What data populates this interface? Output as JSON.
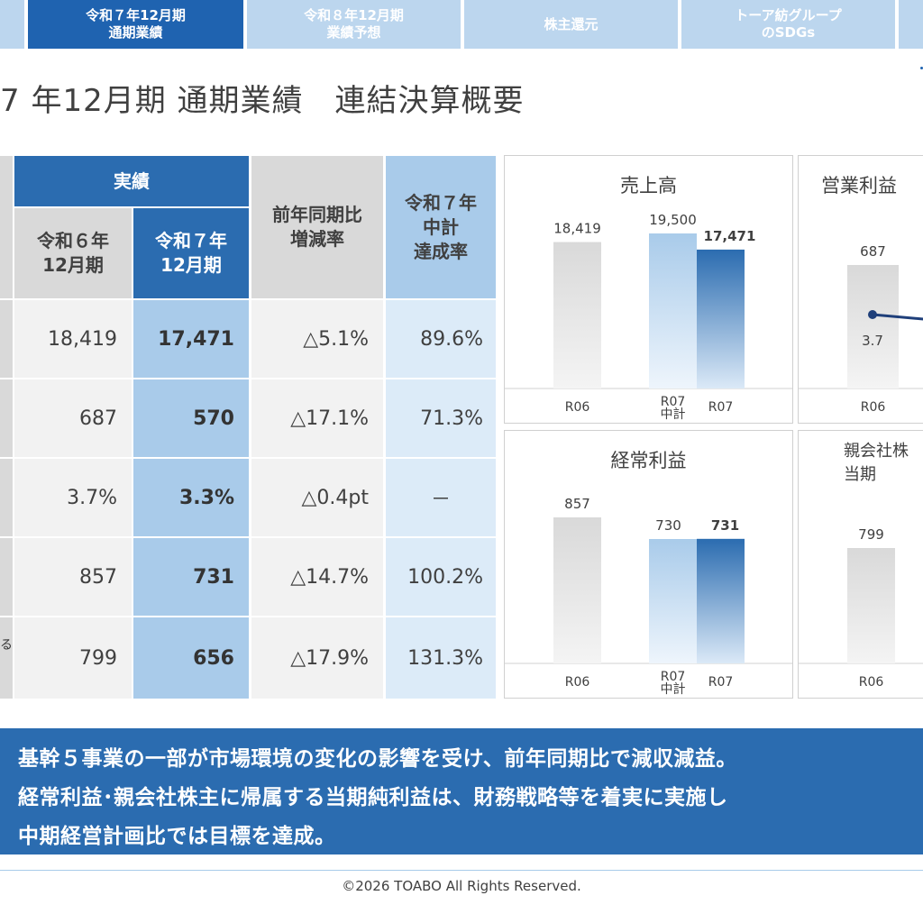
{
  "tabs": [
    {
      "label": ""
    },
    {
      "label": "令和７年12月期\n通期業績",
      "active": true
    },
    {
      "label": "令和８年12月期\n業績予想"
    },
    {
      "label": "株主還元"
    },
    {
      "label": "トーア紡グループ\nのSDGs"
    },
    {
      "label": ""
    }
  ],
  "page": {
    "title": "7 年12月期 通期業績　連結決算概要"
  },
  "table": {
    "header_actual": "実績",
    "header_prev": "令和６年\n12月期",
    "header_cur": "令和７年\n12月期",
    "header_yoy": "前年同期比\n増減率",
    "header_ach": "令和７年\n中計\n達成率",
    "rows": [
      {
        "stub": "",
        "prev": "18,419",
        "cur": "17,471",
        "yoy": "△5.1%",
        "ach": "89.6%"
      },
      {
        "stub": "",
        "prev": "687",
        "cur": "570",
        "yoy": "△17.1%",
        "ach": "71.3%"
      },
      {
        "stub": "",
        "prev": "3.7%",
        "cur": "3.3%",
        "yoy": "△0.4pt",
        "ach": "－"
      },
      {
        "stub": "",
        "prev": "857",
        "cur": "731",
        "yoy": "△14.7%",
        "ach": "100.2%"
      },
      {
        "stub": "る",
        "prev": "799",
        "cur": "656",
        "yoy": "△17.9%",
        "ach": "131.3%"
      }
    ]
  },
  "charts": {
    "sales": {
      "title": "売上高",
      "chart_data": {
        "type": "bar",
        "title": "売上高",
        "categories": [
          "R06",
          "R07\n中計",
          "R07"
        ],
        "values": [
          18419,
          19500,
          17471
        ],
        "labels": [
          "18,419",
          "19,500",
          "17,471"
        ],
        "colors": [
          "#d9d9d9",
          "#a9cbea",
          "#2b6cb0"
        ]
      }
    },
    "operating": {
      "title": "営業利益",
      "chart_data": {
        "type": "bar",
        "title": "営業利益",
        "categories": [
          "R06"
        ],
        "values": [
          687
        ],
        "labels": [
          "687"
        ],
        "line_series": [
          {
            "values": [
              3.7
            ],
            "labels": [
              "3.7"
            ]
          }
        ]
      }
    },
    "ordinary": {
      "title": "経常利益",
      "chart_data": {
        "type": "bar",
        "title": "経常利益",
        "categories": [
          "R06",
          "R07\n中計",
          "R07"
        ],
        "values": [
          857,
          730,
          731
        ],
        "labels": [
          "857",
          "730",
          "731"
        ],
        "colors": [
          "#d9d9d9",
          "#a9cbea",
          "#2b6cb0"
        ]
      }
    },
    "net": {
      "title": "親会社株\n当期",
      "chart_data": {
        "type": "bar",
        "title": "親会社株\n当期",
        "categories": [
          "R06"
        ],
        "values": [
          799
        ],
        "labels": [
          "799"
        ]
      }
    }
  },
  "message": {
    "line1": "基幹５事業の一部が市場環境の変化の影響を受け、前年同期比で減収減益。",
    "line2": "経常利益･親会社株主に帰属する当期純利益は、財務戦略等を着実に実施し",
    "line3": "中期経営計画比では目標を達成。"
  },
  "footer": {
    "copyright": "©2026 TOABO All Rights Reserved."
  }
}
